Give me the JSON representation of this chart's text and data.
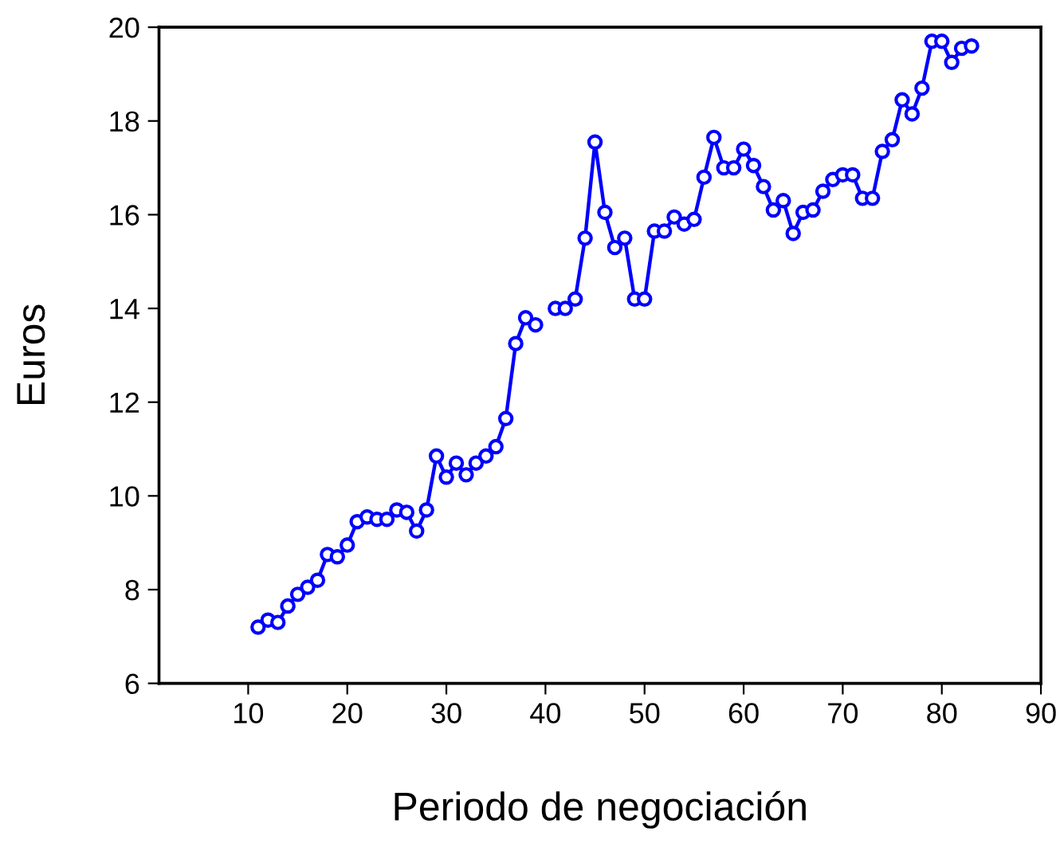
{
  "chart_data": {
    "type": "line",
    "xlabel": "Periodo de negociación",
    "ylabel": "Euros",
    "x": [
      11,
      12,
      13,
      14,
      15,
      16,
      17,
      18,
      19,
      20,
      21,
      22,
      23,
      24,
      25,
      26,
      27,
      28,
      29,
      30,
      31,
      32,
      33,
      34,
      35,
      36,
      37,
      38,
      39,
      40,
      41,
      42,
      43,
      44,
      45,
      46,
      47,
      48,
      49,
      50,
      51,
      52,
      53,
      54,
      55,
      56,
      57,
      58,
      59,
      60,
      61,
      62,
      63,
      64,
      65,
      66,
      67,
      68,
      69,
      70,
      71,
      72,
      73,
      74,
      75,
      76,
      77,
      78,
      79,
      80,
      81,
      82,
      83
    ],
    "series": [
      {
        "color": "#0000ff",
        "values": [
          7.2,
          7.35,
          7.3,
          7.65,
          7.9,
          8.05,
          8.2,
          8.75,
          8.7,
          8.95,
          9.45,
          9.55,
          9.5,
          9.5,
          9.7,
          9.65,
          9.25,
          9.7,
          10.85,
          10.4,
          10.7,
          10.45,
          10.7,
          10.85,
          11.05,
          11.65,
          13.25,
          13.8,
          13.65,
          null,
          14.0,
          14.0,
          14.2,
          15.5,
          17.55,
          16.05,
          15.3,
          15.5,
          14.2,
          14.2,
          15.65,
          15.65,
          15.95,
          15.8,
          15.9,
          16.8,
          17.65,
          17.0,
          17.0,
          17.4,
          17.05,
          16.6,
          16.1,
          16.3,
          15.6,
          16.05,
          16.1,
          16.5,
          16.75,
          16.85,
          16.85,
          16.35,
          16.35,
          17.35,
          17.6,
          18.45,
          18.15,
          18.7,
          19.7,
          19.7,
          19.25,
          19.55,
          19.6
        ]
      }
    ],
    "xlim": [
      1,
      90
    ],
    "ylim": [
      6,
      20
    ],
    "xticks": [
      10,
      20,
      30,
      40,
      50,
      60,
      70,
      80,
      90
    ],
    "yticks": [
      6,
      8,
      10,
      12,
      14,
      16,
      18,
      20
    ],
    "marker": "circle",
    "line_style": "solid",
    "grid": false,
    "legend": false
  }
}
